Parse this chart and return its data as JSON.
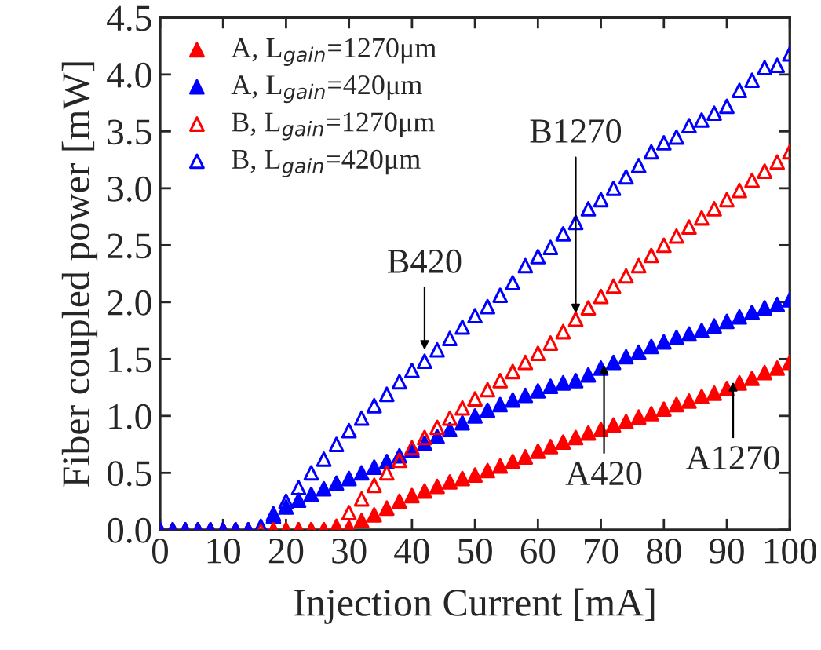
{
  "chart_data": {
    "type": "scatter",
    "xlabel": "Injection Current [mA]",
    "ylabel": "Fiber coupled power [mW]",
    "x": [
      0,
      2,
      4,
      6,
      8,
      10,
      12,
      14,
      16,
      18,
      20,
      22,
      24,
      26,
      28,
      30,
      32,
      34,
      36,
      38,
      40,
      42,
      44,
      46,
      48,
      50,
      52,
      54,
      56,
      58,
      60,
      62,
      64,
      66,
      68,
      70,
      72,
      74,
      76,
      78,
      80,
      82,
      84,
      86,
      88,
      90,
      92,
      94,
      96,
      98,
      100
    ],
    "series": [
      {
        "name": "A, L$_{gain}$=1270μm",
        "color": "#ff0000",
        "marker": "triangle",
        "values": [
          null,
          null,
          null,
          null,
          null,
          null,
          null,
          null,
          null,
          0,
          0,
          0,
          0,
          0,
          0,
          0.02,
          0.08,
          0.13,
          0.19,
          0.25,
          0.3,
          0.34,
          0.38,
          0.42,
          0.45,
          0.48,
          0.52,
          0.56,
          0.6,
          0.64,
          0.69,
          0.73,
          0.77,
          0.81,
          0.85,
          0.88,
          0.92,
          0.95,
          0.99,
          1.02,
          1.06,
          1.1,
          1.13,
          1.17,
          1.2,
          1.24,
          1.29,
          1.33,
          1.38,
          1.42,
          1.47
        ]
      },
      {
        "name": "A, L$_{gain}$=420μm",
        "color": "#0000ff",
        "marker": "triangle",
        "values": [
          0,
          0,
          0,
          0,
          0,
          0,
          0,
          0,
          null,
          0.12,
          0.2,
          0.26,
          0.31,
          0.36,
          0.41,
          0.45,
          0.5,
          0.55,
          0.6,
          0.65,
          0.7,
          0.76,
          0.82,
          0.88,
          0.94,
          1.0,
          1.05,
          1.1,
          1.14,
          1.18,
          1.22,
          1.26,
          1.29,
          1.31,
          1.36,
          1.42,
          1.47,
          1.52,
          1.56,
          1.61,
          1.65,
          1.69,
          1.72,
          1.75,
          1.79,
          1.83,
          1.87,
          1.91,
          1.95,
          1.98,
          2.02
        ]
      },
      {
        "name": "B, L$_{gain}$=1270μm",
        "color": "#ff0000",
        "marker": "triangle",
        "values": [
          0,
          0,
          0,
          0,
          0,
          0,
          0,
          0,
          0,
          0,
          0,
          0,
          0,
          0,
          0.03,
          0.15,
          0.27,
          0.39,
          0.5,
          0.61,
          0.72,
          0.81,
          0.9,
          0.98,
          1.07,
          1.15,
          1.23,
          1.31,
          1.39,
          1.47,
          1.55,
          1.64,
          1.74,
          1.85,
          1.95,
          2.05,
          2.14,
          2.23,
          2.32,
          2.41,
          2.5,
          2.58,
          2.66,
          2.74,
          2.82,
          2.9,
          2.98,
          3.07,
          3.15,
          3.23,
          3.32
        ]
      },
      {
        "name": "B, L$_{gain}$=420μm",
        "color": "#0000ff",
        "marker": "triangle",
        "values": [
          0,
          0,
          0,
          0,
          0,
          0,
          0,
          0,
          0.03,
          0.14,
          0.25,
          0.37,
          0.5,
          0.62,
          0.75,
          0.87,
          0.98,
          1.09,
          1.19,
          1.3,
          1.4,
          1.48,
          1.58,
          1.68,
          1.78,
          1.88,
          1.96,
          2.06,
          2.17,
          2.32,
          2.4,
          2.48,
          2.6,
          2.7,
          2.82,
          2.9,
          3.0,
          3.1,
          3.2,
          3.32,
          3.4,
          3.45,
          3.55,
          3.6,
          3.66,
          3.72,
          3.86,
          3.95,
          4.06,
          4.08,
          4.18
        ]
      }
    ],
    "annotations": [
      {
        "text": "B420",
        "x": 42,
        "y": 1.58
      },
      {
        "text": "B1270",
        "x": 66,
        "y": 1.9
      },
      {
        "text": "A420",
        "x": 70.5,
        "y": 1.45
      },
      {
        "text": "A1270",
        "x": 91,
        "y": 1.3
      }
    ],
    "xlim": [
      0,
      100
    ],
    "xticks": [
      0,
      10,
      20,
      30,
      40,
      50,
      60,
      70,
      80,
      90,
      100
    ],
    "ylim": [
      0,
      4.5
    ],
    "yticks": [
      {
        "value": 0,
        "label": "0.0"
      },
      0.5,
      {
        "value": 1,
        "label": "1.0"
      },
      1.5,
      {
        "value": 2,
        "label": "2.0"
      },
      2.5,
      {
        "value": 3,
        "label": "3.0"
      },
      3.5,
      {
        "value": 4,
        "label": "4.0"
      },
      4.5
    ],
    "grid": false,
    "legend": "top left"
  }
}
